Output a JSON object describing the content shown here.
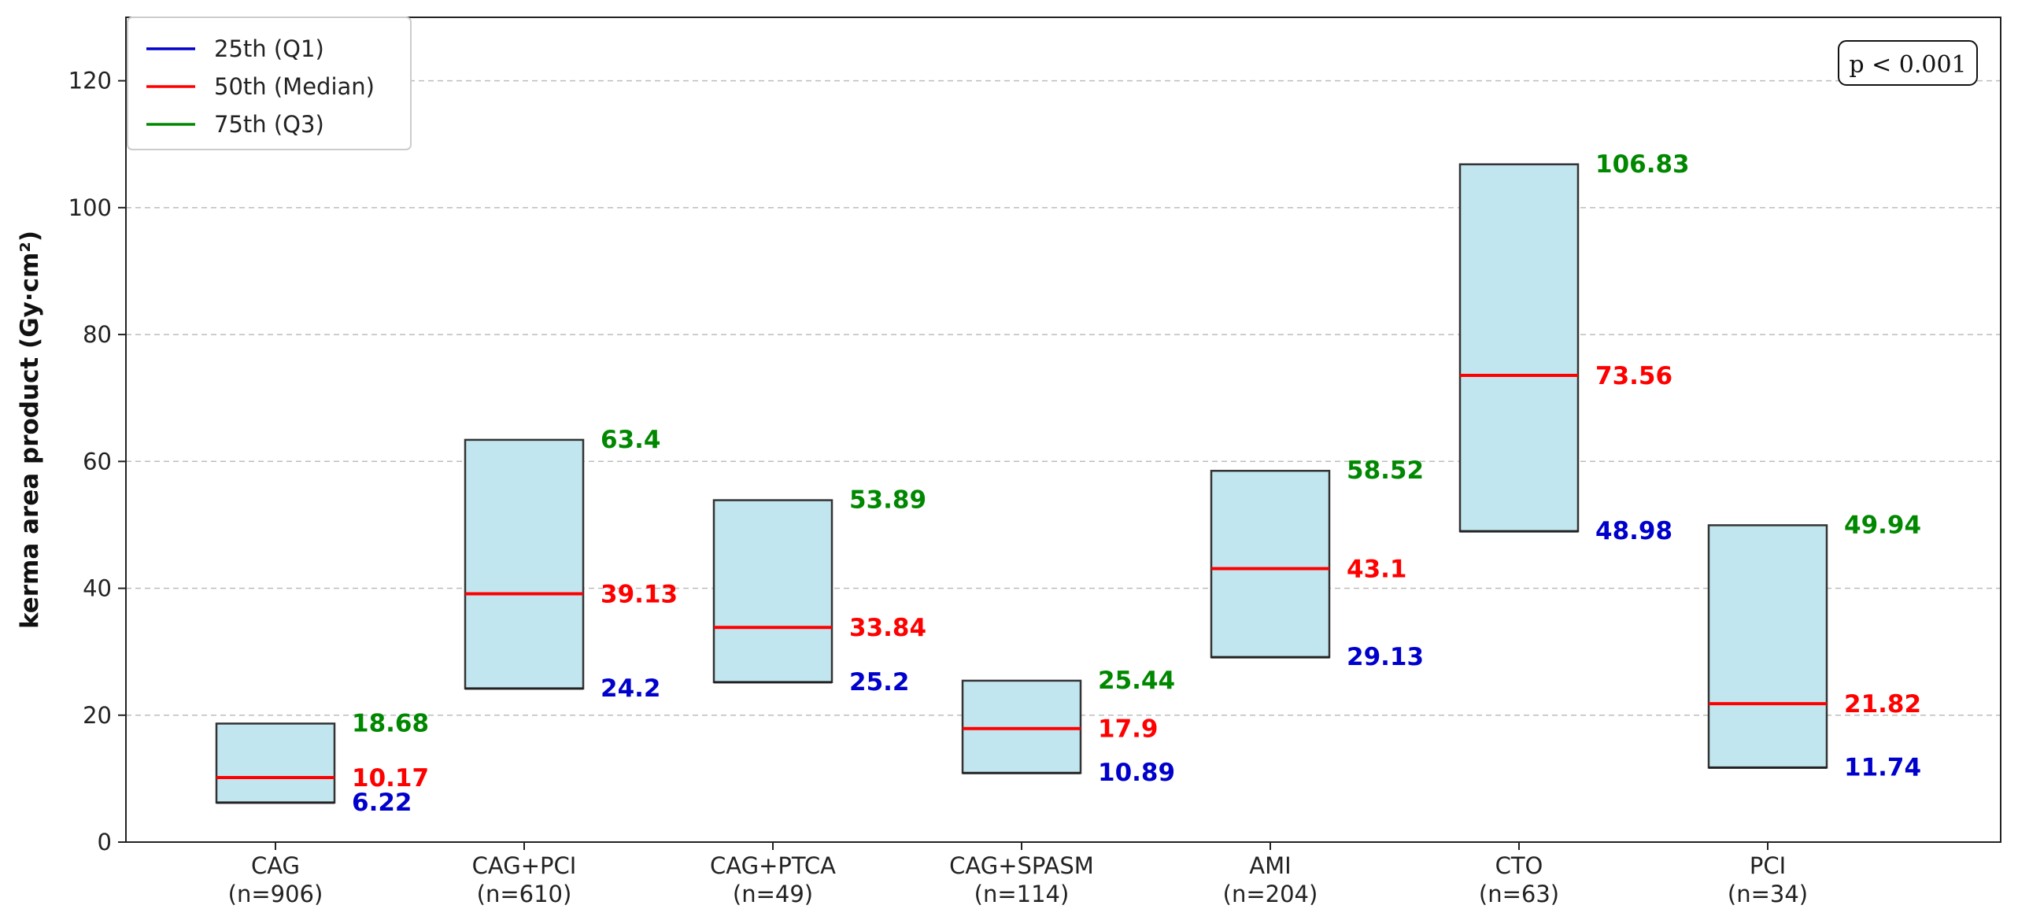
{
  "chart_data": {
    "type": "bar",
    "title": "",
    "xlabel": "",
    "ylabel": "kerma area product (Gy·cm²)",
    "ylim": [
      0,
      130
    ],
    "yticks": [
      0,
      20,
      40,
      60,
      80,
      100,
      120
    ],
    "grid": true,
    "legend_position": "top-left",
    "annotation": "p < 0.001",
    "categories": [
      {
        "name": "CAG",
        "n": "(n=906)"
      },
      {
        "name": "CAG+PCI",
        "n": "(n=610)"
      },
      {
        "name": "CAG+PTCA",
        "n": "(n=49)"
      },
      {
        "name": "CAG+SPASM",
        "n": "(n=114)"
      },
      {
        "name": "AMI",
        "n": "(n=204)"
      },
      {
        "name": "CTO",
        "n": "(n=63)"
      },
      {
        "name": "PCI",
        "n": "(n=34)"
      }
    ],
    "series": [
      {
        "name": "25th (Q1)",
        "color": "#0000cc",
        "values": [
          6.22,
          24.2,
          25.2,
          10.89,
          29.13,
          48.98,
          11.74
        ],
        "labels": [
          "6.22",
          "24.2",
          "25.2",
          "10.89",
          "29.13",
          "48.98",
          "11.74"
        ]
      },
      {
        "name": "50th (Median)",
        "color": "#ff0000",
        "values": [
          10.17,
          39.13,
          33.84,
          17.9,
          43.1,
          73.56,
          21.82
        ],
        "labels": [
          "10.17",
          "39.13",
          "33.84",
          "17.9",
          "43.1",
          "73.56",
          "21.82"
        ]
      },
      {
        "name": "75th (Q3)",
        "color": "#008800",
        "values": [
          18.68,
          63.4,
          53.89,
          25.44,
          58.52,
          106.83,
          49.94
        ],
        "labels": [
          "18.68",
          "63.4",
          "53.89",
          "25.44",
          "58.52",
          "106.83",
          "49.94"
        ]
      }
    ],
    "box_fill": "#c2e6ef",
    "box_edge": "#333333"
  }
}
